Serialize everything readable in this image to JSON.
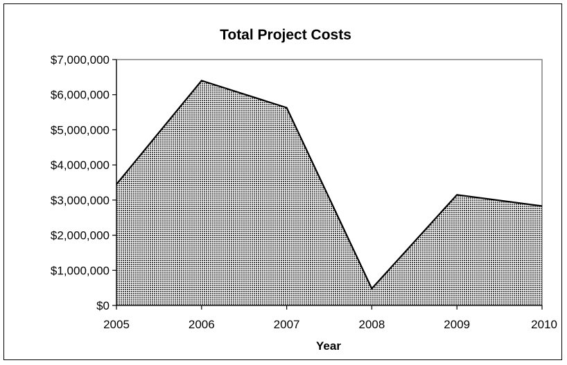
{
  "chart_data": {
    "type": "area",
    "title": "Total Project Costs",
    "xlabel": "Year",
    "ylabel": "",
    "categories": [
      "2005",
      "2006",
      "2007",
      "2008",
      "2009",
      "2010"
    ],
    "values": [
      3450000,
      6400000,
      5630000,
      480000,
      3150000,
      2830000
    ],
    "ylim": [
      0,
      7000000
    ],
    "yticks": [
      0,
      1000000,
      2000000,
      3000000,
      4000000,
      5000000,
      6000000,
      7000000
    ],
    "ytick_labels": [
      "$0",
      "$1,000,000",
      "$2,000,000",
      "$3,000,000",
      "$4,000,000",
      "$5,000,000",
      "$6,000,000",
      "$7,000,000"
    ],
    "grid": false,
    "legend": "none",
    "colors": {
      "fill_dots": "#4a4a4a",
      "fill_background": "#ffffff",
      "line": "#000000",
      "plot_border": "#808080"
    }
  }
}
